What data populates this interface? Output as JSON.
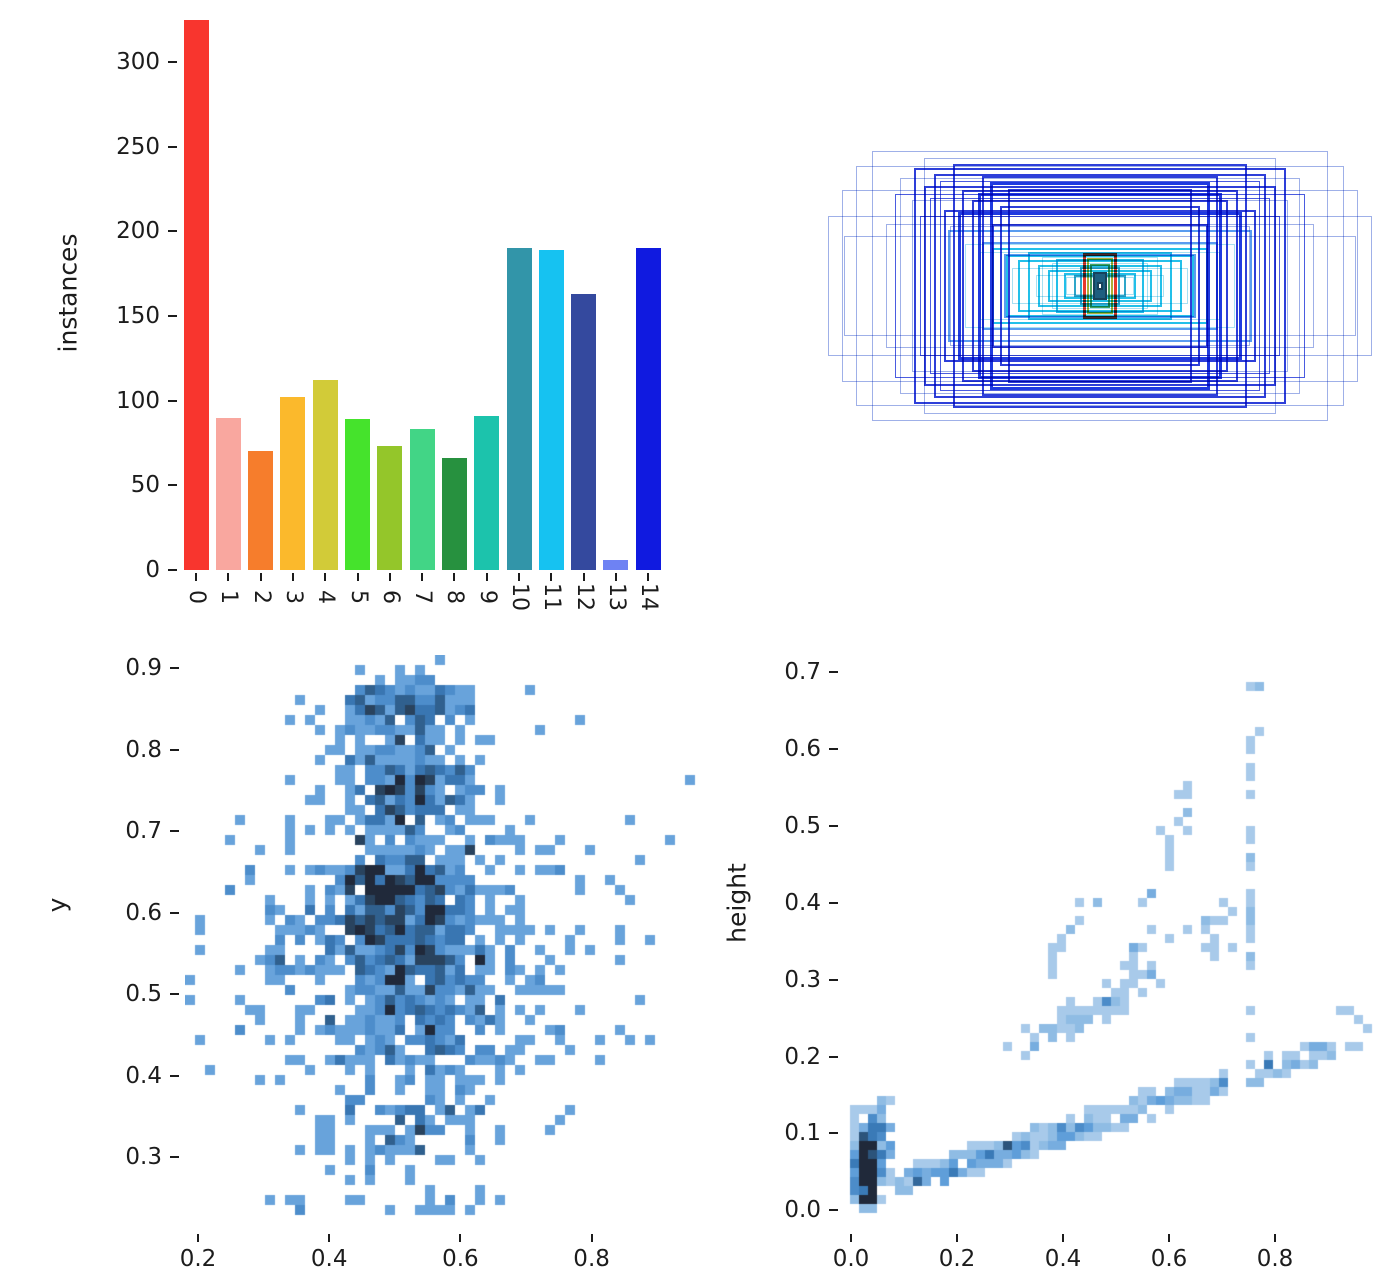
{
  "figure": {
    "background": "#ffffff"
  },
  "heat_colormap": [
    [
      0,
      "#cfe1f2"
    ],
    [
      0.25,
      "#8ebbe4"
    ],
    [
      0.45,
      "#5b9bd8"
    ],
    [
      0.62,
      "#3a7ab8"
    ],
    [
      0.78,
      "#2e5c88"
    ],
    [
      0.9,
      "#283e55"
    ],
    [
      1,
      "#20293a"
    ]
  ],
  "chart_data": [
    {
      "type": "bar",
      "ylabel": "instances",
      "categories": [
        "0",
        "1",
        "2",
        "3",
        "4",
        "5",
        "6",
        "7",
        "8",
        "9",
        "10",
        "11",
        "12",
        "13",
        "14"
      ],
      "values": [
        325,
        90,
        70,
        102,
        112,
        89,
        73,
        83,
        66,
        91,
        190,
        189,
        163,
        6,
        190
      ],
      "colors": [
        "#f8352e",
        "#f9a79f",
        "#f67d2c",
        "#fbb92c",
        "#d2cb38",
        "#45e32c",
        "#94c62a",
        "#42d586",
        "#27913f",
        "#1cc3ac",
        "#3295a9",
        "#16c2f1",
        "#34499e",
        "#6e82f3",
        "#101ae0"
      ],
      "ytick_values": [
        0,
        50,
        100,
        150,
        200,
        250,
        300
      ],
      "ytick_labels": [
        "0",
        "50",
        "100",
        "150",
        "200",
        "250",
        "300"
      ],
      "ylim": [
        0,
        328
      ]
    },
    {
      "type": "boxes",
      "description": "overlay of dataset bounding-box outlines, all centered",
      "rects": [
        [
          272,
          70,
          1,
          "#9fb0e8"
        ],
        [
          258,
          96,
          1,
          "#9fb0e8"
        ],
        [
          244,
          120,
          1,
          "#9fb0e8"
        ],
        [
          228,
          135,
          1,
          "#9fb0e8"
        ],
        [
          214,
          62,
          1,
          "#9fb0e8"
        ],
        [
          200,
          108,
          1,
          "#9fb0e8"
        ],
        [
          188,
          86,
          1,
          "#9fb0e8"
        ],
        [
          176,
          128,
          1,
          "#9fb0e8"
        ],
        [
          256,
          50,
          1,
          "#9fb0e8"
        ],
        [
          150,
          60,
          1,
          "#9fb0e8"
        ],
        [
          186,
          118,
          2,
          "#2e3fd9"
        ],
        [
          176,
          100,
          2,
          "#2e3fd9"
        ],
        [
          166,
          112,
          2,
          "#2e3fd9"
        ],
        [
          156,
          76,
          2,
          "#2e3fd9"
        ],
        [
          147,
          122,
          2,
          "#2e3fd9"
        ],
        [
          138,
          96,
          2,
          "#2e3fd9"
        ],
        [
          128,
          86,
          2,
          "#2e3fd9"
        ],
        [
          118,
          110,
          2,
          "#2e3fd9"
        ],
        [
          108,
          62,
          2,
          "#2e3fd9"
        ],
        [
          100,
          80,
          2,
          "#2e3fd9"
        ],
        [
          92,
          97,
          2,
          "#2e3fd9"
        ],
        [
          180,
          70,
          1,
          "#4b5ce0"
        ],
        [
          170,
          88,
          1,
          "#4b5ce0"
        ],
        [
          160,
          105,
          1,
          "#4b5ce0"
        ],
        [
          205,
          92,
          1,
          "#4b5ce0"
        ],
        [
          142,
          74,
          3,
          "#1f3ae0"
        ],
        [
          122,
          93,
          3,
          "#1f3ae0"
        ],
        [
          110,
          104,
          3,
          "#1f3ae0"
        ],
        [
          152,
          56,
          2,
          "#5a9cf0"
        ],
        [
          118,
          44,
          2,
          "#5a9cf0"
        ],
        [
          96,
          32,
          2,
          "#5a9cf0"
        ],
        [
          108,
          38,
          2,
          "#23c0e9"
        ],
        [
          94,
          31,
          2,
          "#23c0e9"
        ],
        [
          82,
          26,
          2,
          "#23c0e9"
        ],
        [
          72,
          34,
          2,
          "#23c0e9"
        ],
        [
          62,
          21,
          2,
          "#23c0e9"
        ],
        [
          52,
          16,
          2,
          "#23c0e9"
        ],
        [
          44,
          27,
          2,
          "#23c0e9"
        ],
        [
          36,
          13,
          2,
          "#23c0e9"
        ],
        [
          88,
          18,
          1,
          "#a8e0f2"
        ],
        [
          64,
          11,
          1,
          "#a8e0f2"
        ],
        [
          48,
          23,
          1,
          "#a8e0f2"
        ],
        [
          34,
          9,
          1,
          "#a8e0f2"
        ],
        [
          58,
          29,
          1,
          "#a8e0f2"
        ],
        [
          120,
          34,
          1,
          "#a8e0f2"
        ],
        [
          135,
          42,
          1,
          "#a8e0f2"
        ],
        [
          26,
          11,
          2,
          "#2fa6c9"
        ],
        [
          20,
          19,
          2,
          "#2fa6c9"
        ],
        [
          17,
          33,
          3,
          "#e8392c"
        ],
        [
          13,
          28,
          2,
          "#aeae38"
        ],
        [
          10,
          22,
          2,
          "#46a35c"
        ],
        [
          7,
          14,
          2,
          "#17425c",
          "#1d5e80"
        ],
        [
          3,
          4,
          2,
          "#17425c",
          "#ffffff"
        ]
      ]
    },
    {
      "type": "heatmap2d",
      "ylabel": "y",
      "xtick_values": [
        0.2,
        0.4,
        0.6,
        0.8
      ],
      "xtick_labels": [
        "0.2",
        "0.4",
        "0.6",
        "0.8"
      ],
      "ytick_values": [
        0.9,
        0.8,
        0.7,
        0.6,
        0.5,
        0.4,
        0.3
      ],
      "ytick_labels": [
        "0.9",
        "0.8",
        "0.7",
        "0.6",
        "0.5",
        "0.4",
        "0.3"
      ],
      "xlim": [
        0.18,
        1.0
      ],
      "ylim": [
        0.21,
        0.92
      ],
      "cellpx": 10,
      "tmin": 0.4,
      "vmax": 6,
      "seed": 1337,
      "clusters": [
        {
          "k": "g",
          "cx": 0.52,
          "cy": 0.565,
          "sx": 0.065,
          "sy": 0.045,
          "n": 430
        },
        {
          "k": "g",
          "cx": 0.5,
          "cy": 0.635,
          "sx": 0.05,
          "sy": 0.016,
          "n": 140
        },
        {
          "k": "g",
          "cx": 0.52,
          "cy": 0.745,
          "sx": 0.055,
          "sy": 0.035,
          "n": 270
        },
        {
          "k": "g",
          "cx": 0.52,
          "cy": 0.85,
          "sx": 0.065,
          "sy": 0.02,
          "n": 150
        },
        {
          "k": "g",
          "cx": 0.55,
          "cy": 0.45,
          "sx": 0.09,
          "sy": 0.03,
          "n": 150
        },
        {
          "k": "g",
          "cx": 0.52,
          "cy": 0.335,
          "sx": 0.09,
          "sy": 0.035,
          "n": 105
        },
        {
          "k": "g",
          "cx": 0.55,
          "cy": 0.56,
          "sx": 0.165,
          "sy": 0.105,
          "n": 320
        },
        {
          "k": "g",
          "cx": 0.34,
          "cy": 0.52,
          "sx": 0.05,
          "sy": 0.04,
          "n": 40
        },
        {
          "k": "u",
          "x0": 0.3,
          "x1": 0.72,
          "y0": 0.235,
          "y1": 0.255,
          "n": 15
        }
      ]
    },
    {
      "type": "heatmap2d",
      "ylabel": "height",
      "xtick_values": [
        0.0,
        0.2,
        0.4,
        0.6,
        0.8
      ],
      "xtick_labels": [
        "0.0",
        "0.2",
        "0.4",
        "0.6",
        "0.8"
      ],
      "ytick_values": [
        0.7,
        0.6,
        0.5,
        0.4,
        0.3,
        0.2,
        0.1,
        0.0
      ],
      "ytick_labels": [
        "0.7",
        "0.6",
        "0.5",
        "0.4",
        "0.3",
        "0.2",
        "0.1",
        "0.0"
      ],
      "xlim": [
        -0.02,
        1.01
      ],
      "ylim": [
        -0.03,
        0.72
      ],
      "cellpx": 9,
      "tmin": 0.15,
      "vmax": 10,
      "seed": 2024,
      "clusters": [
        {
          "k": "g",
          "cx": 0.03,
          "cy": 0.05,
          "sx": 0.013,
          "sy": 0.03,
          "n": 250,
          "xmin": 0.006,
          "ymin": 0.006
        },
        {
          "k": "g",
          "cx": 0.052,
          "cy": 0.1,
          "sx": 0.013,
          "sy": 0.018,
          "n": 55
        },
        {
          "k": "l",
          "x0": 0.08,
          "y0": 0.03,
          "x1": 0.93,
          "y1": 0.215,
          "jx": 0.03,
          "jy": 0.013,
          "n": 210
        },
        {
          "k": "l",
          "x0": 0.13,
          "y0": 0.045,
          "x1": 0.45,
          "y1": 0.11,
          "jx": 0.03,
          "jy": 0.01,
          "n": 80
        },
        {
          "k": "l",
          "x0": 0.33,
          "y0": 0.215,
          "x1": 0.57,
          "y1": 0.3,
          "jx": 0.03,
          "jy": 0.018,
          "n": 55
        },
        {
          "k": "l",
          "x0": 0.5,
          "y0": 0.28,
          "x1": 0.65,
          "y1": 0.54,
          "jx": 0.02,
          "jy": 0.03,
          "n": 26
        },
        {
          "k": "l",
          "x0": 0.753,
          "y0": 0.2,
          "x1": 0.76,
          "y1": 0.68,
          "jx": 0.006,
          "jy": 0.02,
          "n": 26
        },
        {
          "k": "l",
          "x0": 0.36,
          "y0": 0.31,
          "x1": 0.47,
          "y1": 0.42,
          "jx": 0.012,
          "jy": 0.02,
          "n": 12
        },
        {
          "k": "g",
          "cx": 0.7,
          "cy": 0.36,
          "sx": 0.03,
          "sy": 0.04,
          "n": 8
        },
        {
          "k": "u",
          "x0": 0.89,
          "x1": 0.97,
          "y0": 0.235,
          "y1": 0.27,
          "n": 4
        },
        {
          "k": "u",
          "x0": 0.55,
          "x1": 0.72,
          "y0": 0.33,
          "y1": 0.385,
          "n": 7
        }
      ]
    }
  ]
}
